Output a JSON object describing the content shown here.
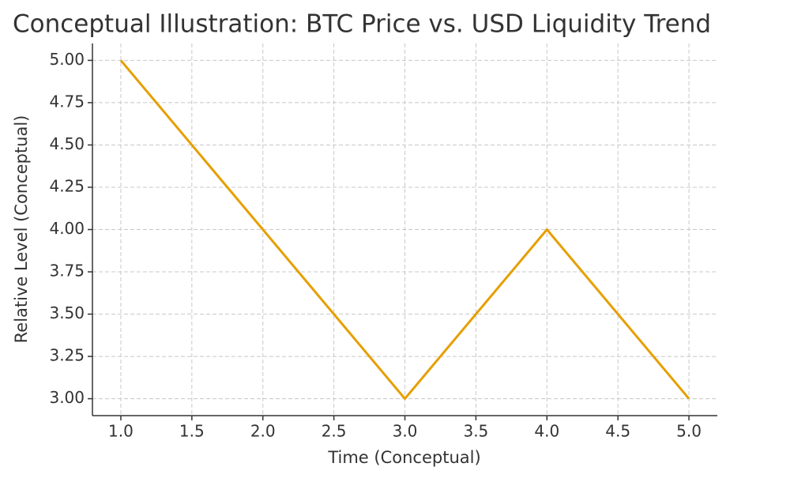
{
  "chart_data": {
    "type": "line",
    "title": "Conceptual Illustration: BTC Price vs. USD Liquidity Trend",
    "x_label": "Time (Conceptual)",
    "y_label": "Relative Level (Conceptual)",
    "x": [
      1,
      2,
      3,
      4,
      5
    ],
    "values": [
      5,
      4,
      3,
      4,
      3
    ],
    "color": "#e69f00",
    "xlim": [
      0.8,
      5.2
    ],
    "ylim": [
      2.9,
      5.1
    ],
    "xticks": [
      {
        "value": 1,
        "label": "1.0"
      },
      1.5,
      {
        "value": 2,
        "label": "2.0"
      },
      2.5,
      {
        "value": 3,
        "label": "3.0"
      },
      3.5,
      {
        "value": 4,
        "label": "4.0"
      },
      4.5,
      {
        "value": 5,
        "label": "5.0"
      }
    ],
    "yticks": [
      {
        "value": 3,
        "label": "3.00"
      },
      3.25,
      {
        "value": 3.5,
        "label": "3.50"
      },
      3.75,
      {
        "value": 4,
        "label": "4.00"
      },
      4.25,
      {
        "value": 4.5,
        "label": "4.50"
      },
      4.75,
      {
        "value": 5,
        "label": "5.00"
      }
    ],
    "grid": true
  }
}
